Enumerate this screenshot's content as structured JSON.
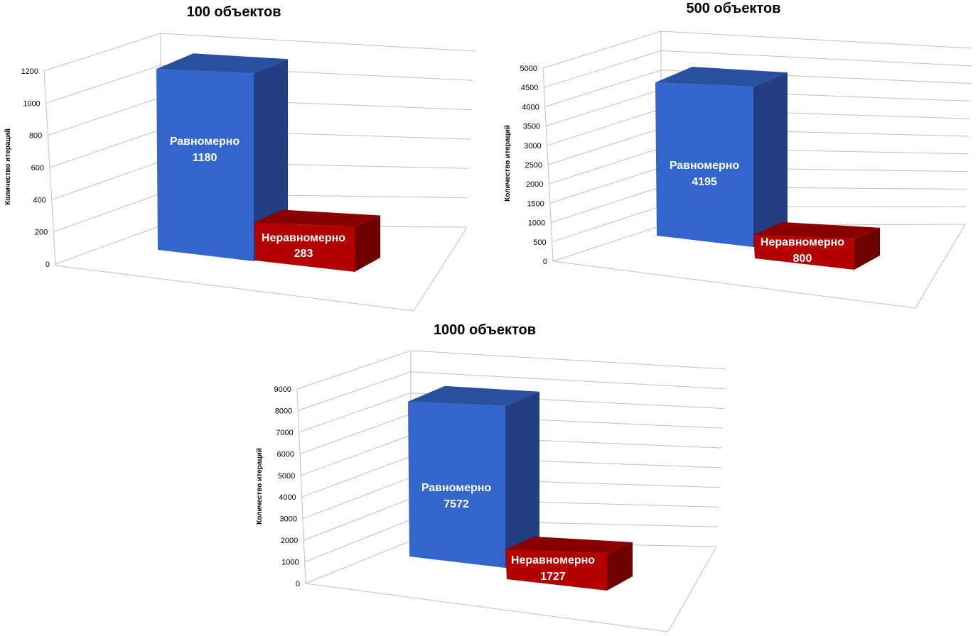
{
  "colors": {
    "blue_front": "#3366cc",
    "blue_side": "#213f82",
    "blue_top": "#28509f",
    "red_front": "#b30000",
    "red_side": "#6e0000",
    "red_top": "#8a0000"
  },
  "chart_data": [
    {
      "type": "bar",
      "title": "100 объектов",
      "ylabel": "Количество итераций",
      "ylim": [
        0,
        1200
      ],
      "yticks": [
        "0",
        "200",
        "400",
        "600",
        "800",
        "1000",
        "1200"
      ],
      "categories": [
        "Равномерно",
        "Неравномерно"
      ],
      "values": [
        1180,
        283
      ],
      "value_labels": [
        "1180",
        "283"
      ]
    },
    {
      "type": "bar",
      "title": "500 объектов",
      "ylabel": "Количество итераций",
      "ylim": [
        0,
        5000
      ],
      "yticks": [
        "0",
        "500",
        "1000",
        "1500",
        "2000",
        "2500",
        "3000",
        "3500",
        "4000",
        "4500",
        "5000"
      ],
      "categories": [
        "Равномерно",
        "Неравномерно"
      ],
      "values": [
        4195,
        800
      ],
      "value_labels": [
        "4195",
        "800"
      ]
    },
    {
      "type": "bar",
      "title": "1000 объектов",
      "ylabel": "Количество итераций",
      "ylim": [
        0,
        9000
      ],
      "yticks": [
        "0",
        "1000",
        "2000",
        "3000",
        "4000",
        "5000",
        "6000",
        "7000",
        "8000",
        "9000"
      ],
      "categories": [
        "Равномерно",
        "Неравномерно"
      ],
      "values": [
        7572,
        1727
      ],
      "value_labels": [
        "7572",
        "1727"
      ]
    }
  ]
}
